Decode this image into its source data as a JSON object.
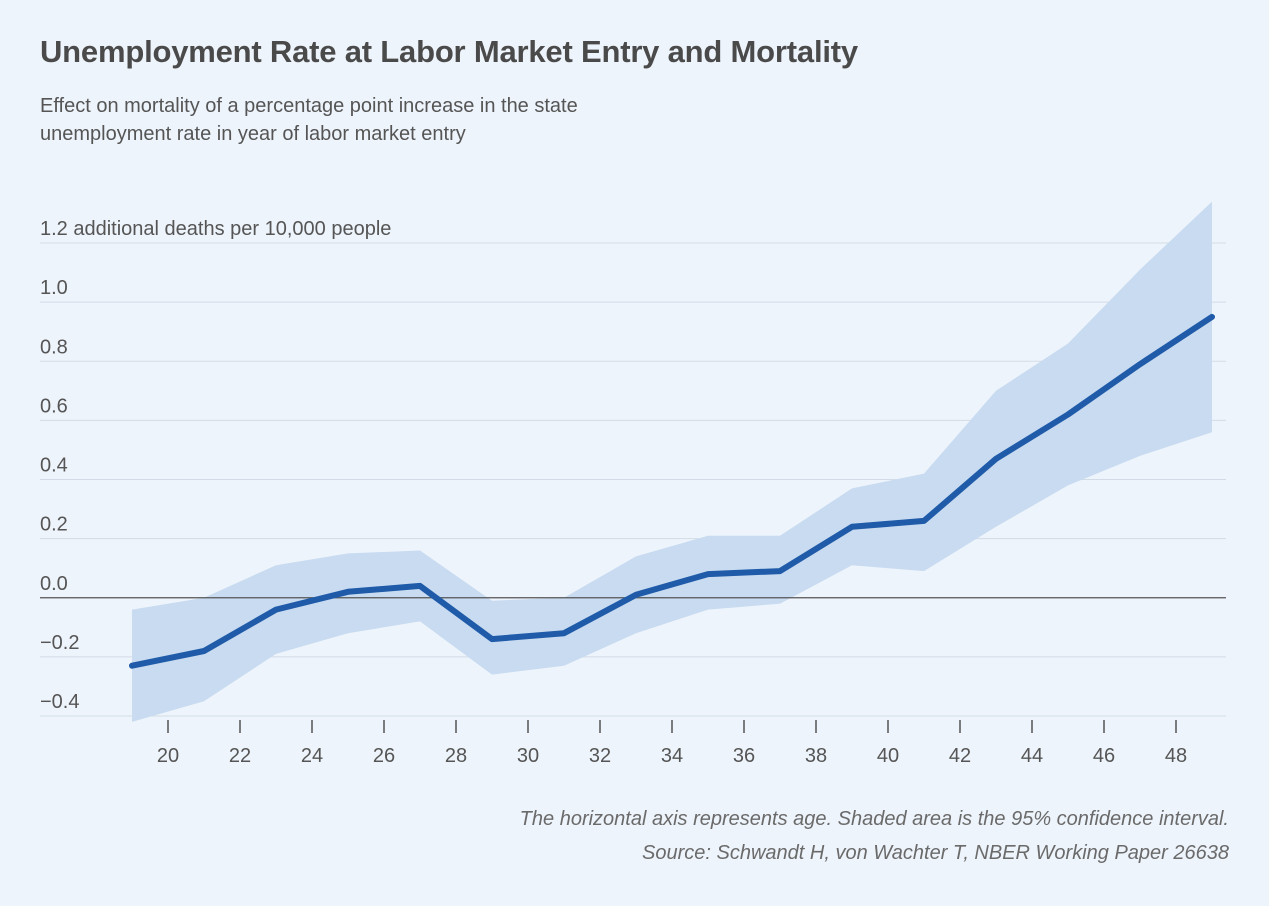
{
  "title": "Unemployment Rate at Labor Market Entry and Mortality",
  "subtitle": "Effect on mortality of a percentage point increase in the state unemployment rate in year of labor market entry",
  "notes": {
    "axis_note": "The horizontal axis represents age. Shaded area is the 95% confidence interval.",
    "source": "Source: Schwandt H, von Wachter T, NBER Working Paper 26638"
  },
  "colors": {
    "line": "#1f5ba8",
    "band": "#c8dbf1",
    "grid": "#d3dbe6",
    "zero": "#555555"
  },
  "chart_data": {
    "type": "line",
    "title": "Unemployment Rate at Labor Market Entry and Mortality",
    "xlabel": "",
    "ylabel": "additional deaths per 10,000 people",
    "x": [
      19,
      21,
      23,
      25,
      27,
      29,
      31,
      33,
      35,
      37,
      39,
      41,
      43,
      45,
      47,
      49
    ],
    "series": [
      {
        "name": "Effect on mortality",
        "values": [
          -0.23,
          -0.18,
          -0.04,
          0.02,
          0.04,
          -0.14,
          -0.12,
          0.01,
          0.08,
          0.09,
          0.24,
          0.26,
          0.47,
          0.62,
          0.79,
          0.95
        ]
      }
    ],
    "confidence_interval": {
      "name": "95% confidence interval",
      "lower": [
        -0.42,
        -0.35,
        -0.19,
        -0.12,
        -0.08,
        -0.26,
        -0.23,
        -0.12,
        -0.04,
        -0.02,
        0.11,
        0.09,
        0.24,
        0.38,
        0.48,
        0.56
      ],
      "upper": [
        -0.04,
        0.0,
        0.11,
        0.15,
        0.16,
        -0.01,
        0.0,
        0.14,
        0.21,
        0.21,
        0.37,
        0.42,
        0.7,
        0.86,
        1.11,
        1.34
      ]
    },
    "xlim": [
      18,
      50
    ],
    "ylim": [
      -0.4,
      1.2
    ],
    "x_ticks": [
      "20",
      "22",
      "24",
      "26",
      "28",
      "30",
      "32",
      "34",
      "36",
      "38",
      "40",
      "42",
      "44",
      "46",
      "48"
    ],
    "y_ticks": [
      "1.2 additional deaths per 10,000 people",
      "1.0",
      "0.8",
      "0.6",
      "0.4",
      "0.2",
      "0.0",
      "−0.2",
      "−0.4"
    ],
    "grid": true,
    "legend": "none"
  }
}
